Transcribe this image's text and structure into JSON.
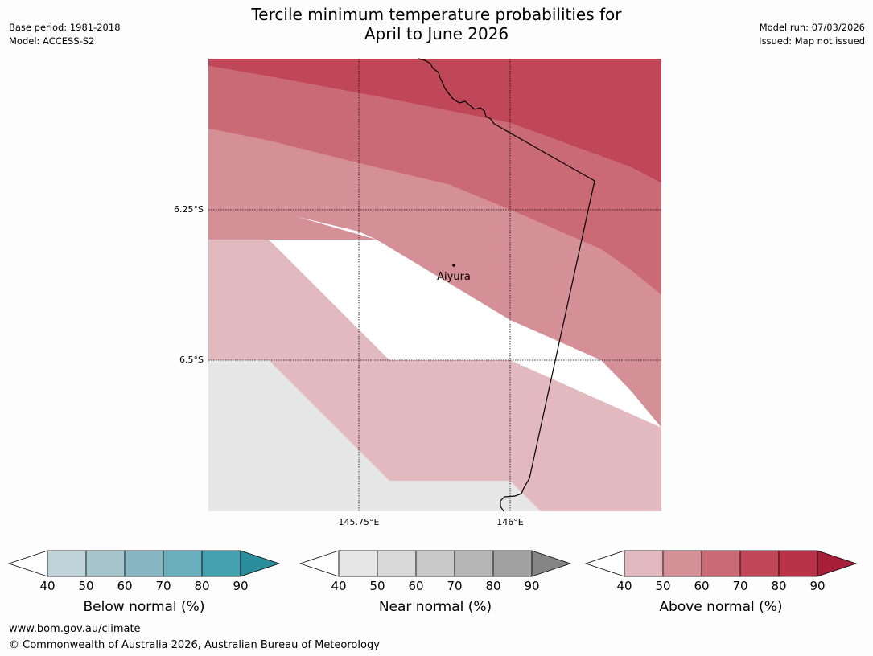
{
  "title": {
    "line1": "Tercile minimum temperature probabilities for",
    "line2": "April to June 2026"
  },
  "meta": {
    "base_period": "Base period: 1981-2018",
    "model": "Model: ACCESS-S2",
    "model_run": "Model run: 07/03/2026",
    "issued": "Issued: Map not issued"
  },
  "map": {
    "latitude_labels": [
      "6.25°S",
      "6.5°S"
    ],
    "longitude_labels": [
      "145.75°E",
      "146°E"
    ],
    "place": "Aiyura",
    "category_colors": {
      "above_40_50": "#e1b9be",
      "above_50_60": "#d58f97",
      "above_60_70": "#ca6a74",
      "above_70_80": "#c04758",
      "near_40_50": "#e6e6e6",
      "no_dominant": "#ffffff"
    }
  },
  "colorbars": [
    {
      "label": "Below normal (%)",
      "ticks": [
        "40",
        "50",
        "60",
        "70",
        "80",
        "90"
      ],
      "colors": [
        "#bed3da",
        "#a5c5cb",
        "#87b5c1",
        "#6baebb",
        "#46a1ae"
      ],
      "extend_low": "#ffffff",
      "extend_high": "#2b8e9d"
    },
    {
      "label": "Near normal (%)",
      "ticks": [
        "40",
        "50",
        "60",
        "70",
        "80",
        "90"
      ],
      "colors": [
        "#e6e6e6",
        "#d9d9d9",
        "#c9c9c9",
        "#b5b5b5",
        "#a0a0a0"
      ],
      "extend_low": "#ffffff",
      "extend_high": "#858585"
    },
    {
      "label": "Above normal (%)",
      "ticks": [
        "40",
        "50",
        "60",
        "70",
        "80",
        "90"
      ],
      "colors": [
        "#e1b9be",
        "#d58f97",
        "#ca6a74",
        "#c04758",
        "#b83348"
      ],
      "extend_low": "#ffffff",
      "extend_high": "#a81f3a"
    }
  ],
  "footer": {
    "url": "www.bom.gov.au/climate",
    "copyright": "© Commonwealth of Australia 2026, Australian Bureau of Meteorology"
  }
}
